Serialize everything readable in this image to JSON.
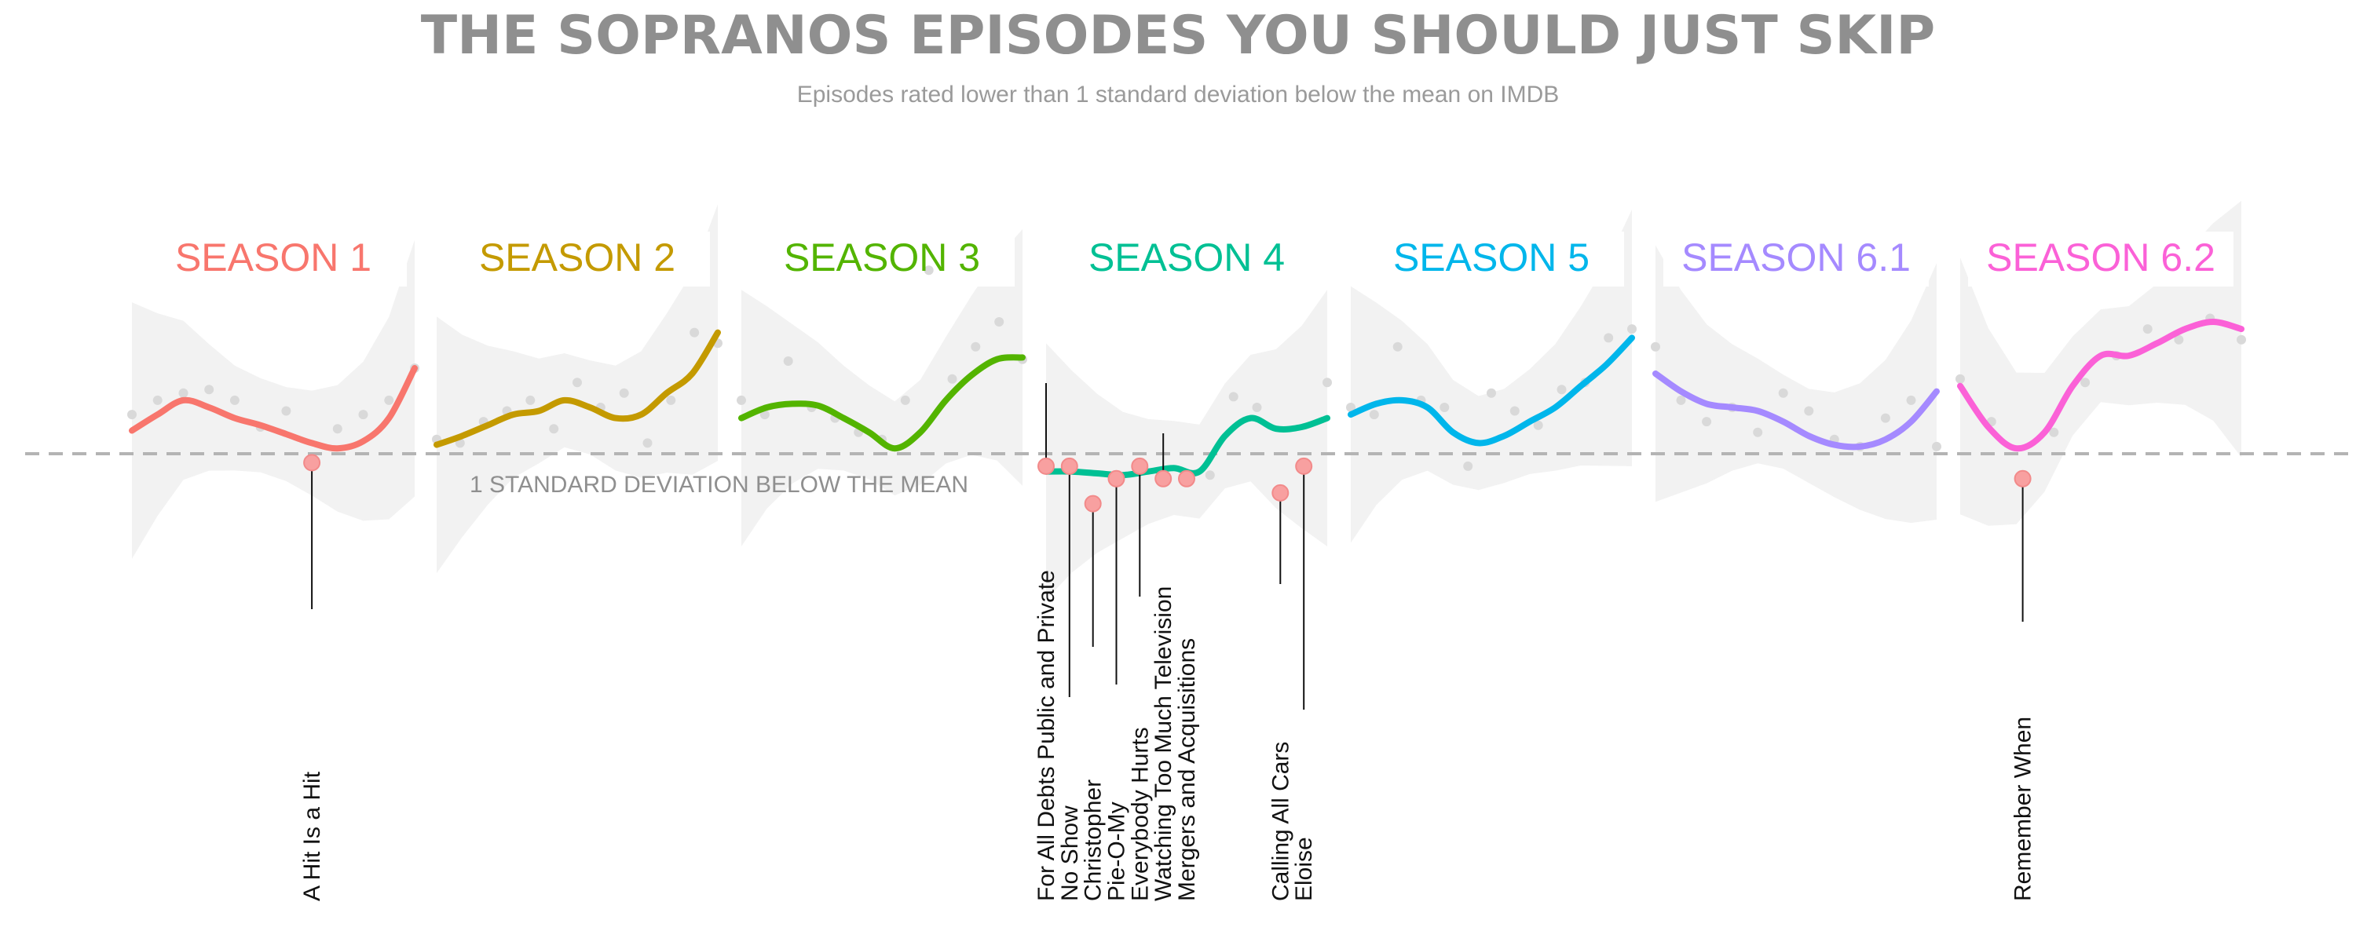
{
  "chart_data": {
    "type": "line",
    "title": "THE SOPRANOS EPISODES YOU SHOULD JUST SKIP",
    "subtitle": "Episodes rated lower than 1 standard deviation below the mean on IMDB",
    "reference_line": {
      "label": "1 STANDARD DEVIATION BELOW THE MEAN",
      "value": 0
    },
    "ylim": [
      -0.8,
      1.6
    ],
    "grid": false,
    "series": [
      {
        "name": "SEASON 1",
        "color": "#f8766d",
        "smooth": [
          0.13,
          0.22,
          0.3,
          0.26,
          0.2,
          0.16,
          0.11,
          0.06,
          0.03,
          0.07,
          0.2,
          0.48
        ],
        "points": [
          0.22,
          0.3,
          0.34,
          0.36,
          0.3,
          0.15,
          0.24,
          -0.05,
          0.14,
          0.22,
          0.3,
          0.48
        ],
        "outliers": [
          {
            "episode": "A Hit Is a Hit",
            "index": 7
          }
        ]
      },
      {
        "name": "SEASON 2",
        "color": "#c49a00",
        "smooth": [
          0.05,
          0.1,
          0.16,
          0.22,
          0.24,
          0.3,
          0.26,
          0.2,
          0.22,
          0.34,
          0.45,
          0.68
        ],
        "points": [
          0.08,
          0.06,
          0.18,
          0.24,
          0.3,
          0.14,
          0.4,
          0.26,
          0.34,
          0.06,
          0.3,
          0.68,
          0.62
        ]
      },
      {
        "name": "SEASON 3",
        "color": "#53b400",
        "smooth": [
          0.2,
          0.26,
          0.28,
          0.27,
          0.2,
          0.12,
          0.03,
          0.12,
          0.3,
          0.44,
          0.53,
          0.54
        ],
        "points": [
          0.3,
          0.22,
          0.52,
          0.26,
          0.2,
          0.12,
          0.08,
          0.3,
          1.03,
          0.42,
          0.6,
          0.74,
          0.53
        ]
      },
      {
        "name": "SEASON 4",
        "color": "#00c094",
        "smooth": [
          -0.1,
          -0.1,
          -0.11,
          -0.12,
          -0.1,
          -0.08,
          -0.1,
          0.1,
          0.2,
          0.14,
          0.15,
          0.2
        ],
        "points": [
          -0.07,
          -0.07,
          -0.28,
          -0.14,
          -0.07,
          -0.14,
          -0.14,
          -0.12,
          0.32,
          0.26,
          -0.22,
          -0.07,
          0.4
        ],
        "outliers": [
          {
            "episode": "For All Debts Public and Private",
            "index": 0
          },
          {
            "episode": "No Show",
            "index": 1
          },
          {
            "episode": "Christopher",
            "index": 2
          },
          {
            "episode": "Pie-O-My",
            "index": 3
          },
          {
            "episode": "Everybody Hurts",
            "index": 4
          },
          {
            "episode": "Watching Too Much Television",
            "index": 5
          },
          {
            "episode": "Mergers and Acquisitions",
            "index": 6
          },
          {
            "episode": "Calling All Cars",
            "index": 10
          },
          {
            "episode": "Eloise",
            "index": 11
          }
        ]
      },
      {
        "name": "SEASON 5",
        "color": "#00b6eb",
        "smooth": [
          0.22,
          0.28,
          0.3,
          0.26,
          0.12,
          0.06,
          0.1,
          0.18,
          0.26,
          0.38,
          0.5,
          0.65
        ],
        "points": [
          0.26,
          0.22,
          0.6,
          0.3,
          0.26,
          -0.07,
          0.34,
          0.24,
          0.16,
          0.36,
          0.4,
          0.65,
          0.7
        ]
      },
      {
        "name": "SEASON 6.1",
        "color": "#a58aff",
        "smooth": [
          0.45,
          0.35,
          0.28,
          0.26,
          0.24,
          0.18,
          0.1,
          0.05,
          0.04,
          0.08,
          0.18,
          0.35
        ],
        "points": [
          0.6,
          0.3,
          0.18,
          0.26,
          0.12,
          0.34,
          0.24,
          0.08,
          0.04,
          0.2,
          0.3,
          0.04
        ]
      },
      {
        "name": "SEASON 6.2",
        "color": "#fb61d7",
        "smooth": [
          0.38,
          0.15,
          0.03,
          0.12,
          0.38,
          0.55,
          0.55,
          0.62,
          0.7,
          0.74,
          0.7
        ],
        "points": [
          0.42,
          0.18,
          -0.14,
          0.12,
          0.4,
          0.55,
          0.7,
          0.64,
          0.76,
          0.64
        ],
        "outliers": [
          {
            "episode": "Remember When",
            "index": 2
          }
        ]
      }
    ]
  }
}
